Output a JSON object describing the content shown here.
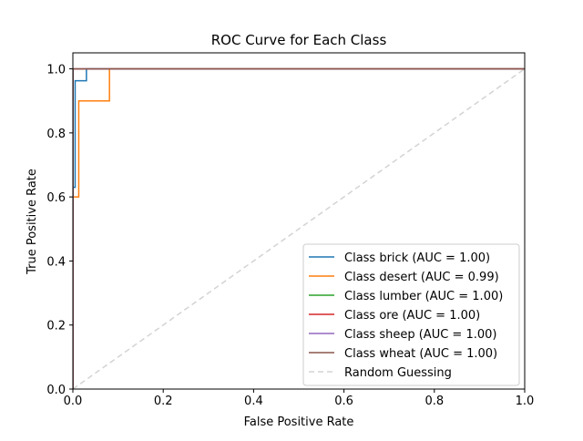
{
  "chart_data": {
    "type": "line",
    "title": "ROC Curve for Each Class",
    "xlabel": "False Positive Rate",
    "ylabel": "True Positive Rate",
    "xlim": [
      0,
      1
    ],
    "ylim": [
      0,
      1.05
    ],
    "xticks": [
      0.0,
      0.2,
      0.4,
      0.6,
      0.8,
      1.0
    ],
    "xtick_labels": [
      "0.0",
      "0.2",
      "0.4",
      "0.6",
      "0.8",
      "1.0"
    ],
    "yticks": [
      0.0,
      0.2,
      0.4,
      0.6,
      0.8,
      1.0
    ],
    "ytick_labels": [
      "0.0",
      "0.2",
      "0.4",
      "0.6",
      "0.8",
      "1.0"
    ],
    "grid": false,
    "legend_position": "bottom-right",
    "series": [
      {
        "name": "Class brick (AUC = 1.00)",
        "color": "#1f77b4",
        "x": [
          0.0,
          0.0,
          0.005,
          0.005,
          0.03,
          0.03,
          1.0
        ],
        "y": [
          0.0,
          0.63,
          0.63,
          0.963,
          0.963,
          1.0,
          1.0
        ]
      },
      {
        "name": "Class desert (AUC = 0.99)",
        "color": "#ff7f0e",
        "x": [
          0.0,
          0.0,
          0.013,
          0.013,
          0.081,
          0.081,
          1.0
        ],
        "y": [
          0.0,
          0.6,
          0.6,
          0.9,
          0.9,
          1.0,
          1.0
        ]
      },
      {
        "name": "Class lumber (AUC = 1.00)",
        "color": "#2ca02c",
        "x": [
          0.0,
          0.0,
          1.0
        ],
        "y": [
          0.0,
          1.0,
          1.0
        ]
      },
      {
        "name": "Class ore (AUC = 1.00)",
        "color": "#d62728",
        "x": [
          0.0,
          0.0,
          1.0
        ],
        "y": [
          0.0,
          1.0,
          1.0
        ]
      },
      {
        "name": "Class sheep (AUC = 1.00)",
        "color": "#9467bd",
        "x": [
          0.0,
          0.0,
          1.0
        ],
        "y": [
          0.0,
          1.0,
          1.0
        ]
      },
      {
        "name": "Class wheat (AUC = 1.00)",
        "color": "#8c564b",
        "x": [
          0.0,
          0.0,
          1.0
        ],
        "y": [
          0.0,
          1.0,
          1.0
        ]
      }
    ],
    "reference_line": {
      "name": "Random Guessing",
      "color": "#d3d3d3",
      "style": "dashed",
      "x": [
        0,
        1
      ],
      "y": [
        0,
        1
      ]
    }
  }
}
